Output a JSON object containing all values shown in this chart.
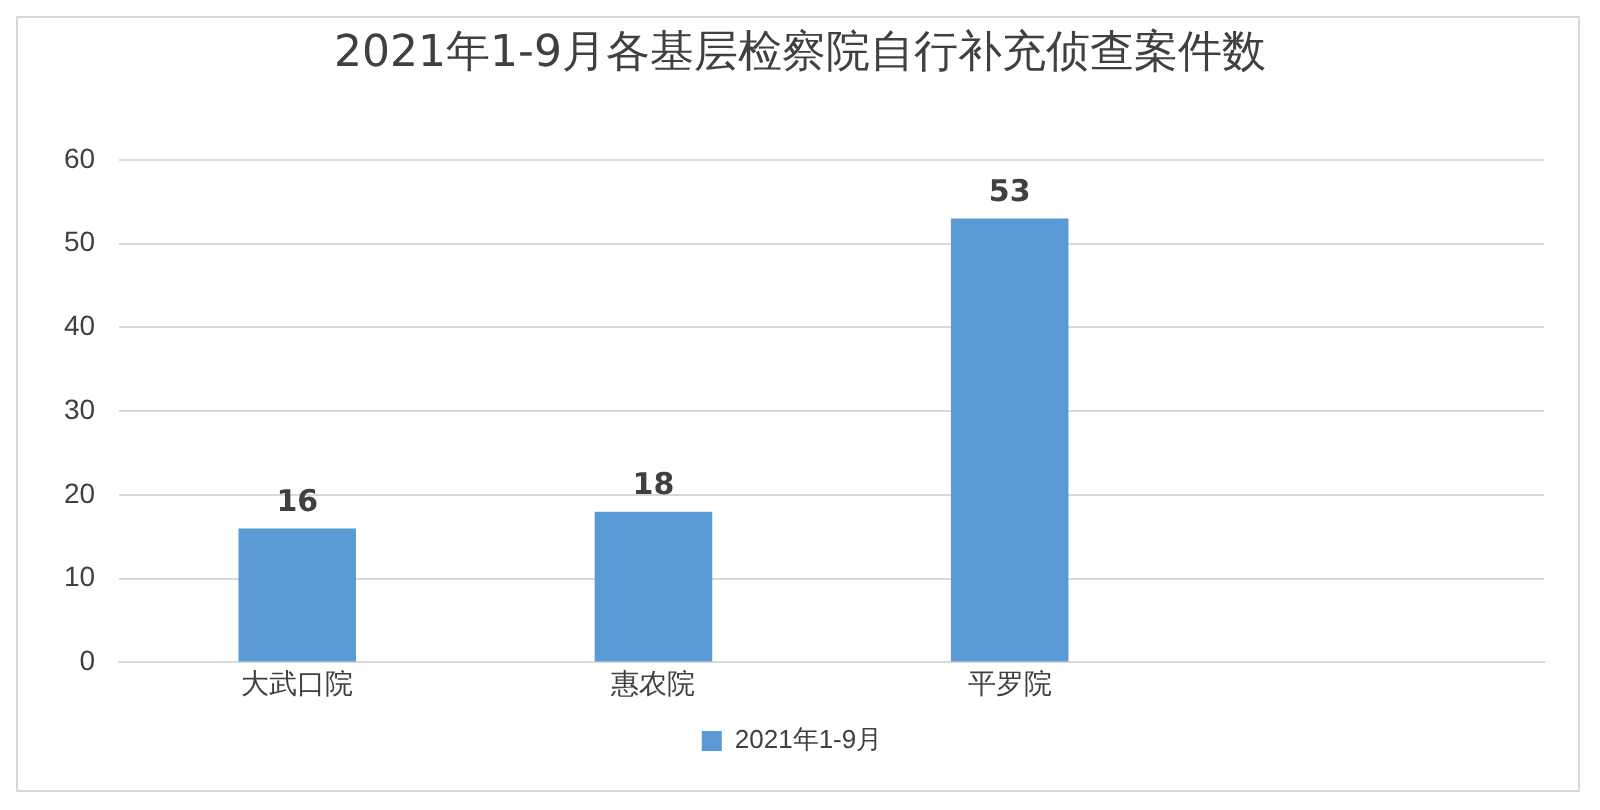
{
  "chart_data": {
    "type": "bar",
    "title": "2021年1-9月各基层检察院自行补充侦查案件数",
    "categories": [
      "大武口院",
      "惠农院",
      "平罗院",
      null
    ],
    "series": [
      {
        "name": "2021年1-9月",
        "color": "#5b9bd5",
        "values": [
          16,
          18,
          53,
          null
        ]
      }
    ],
    "ylim": [
      0,
      60
    ],
    "yticks": [
      0,
      10,
      20,
      30,
      40,
      50,
      60
    ],
    "grid": "y",
    "legend": "bottom",
    "data_labels": true
  }
}
